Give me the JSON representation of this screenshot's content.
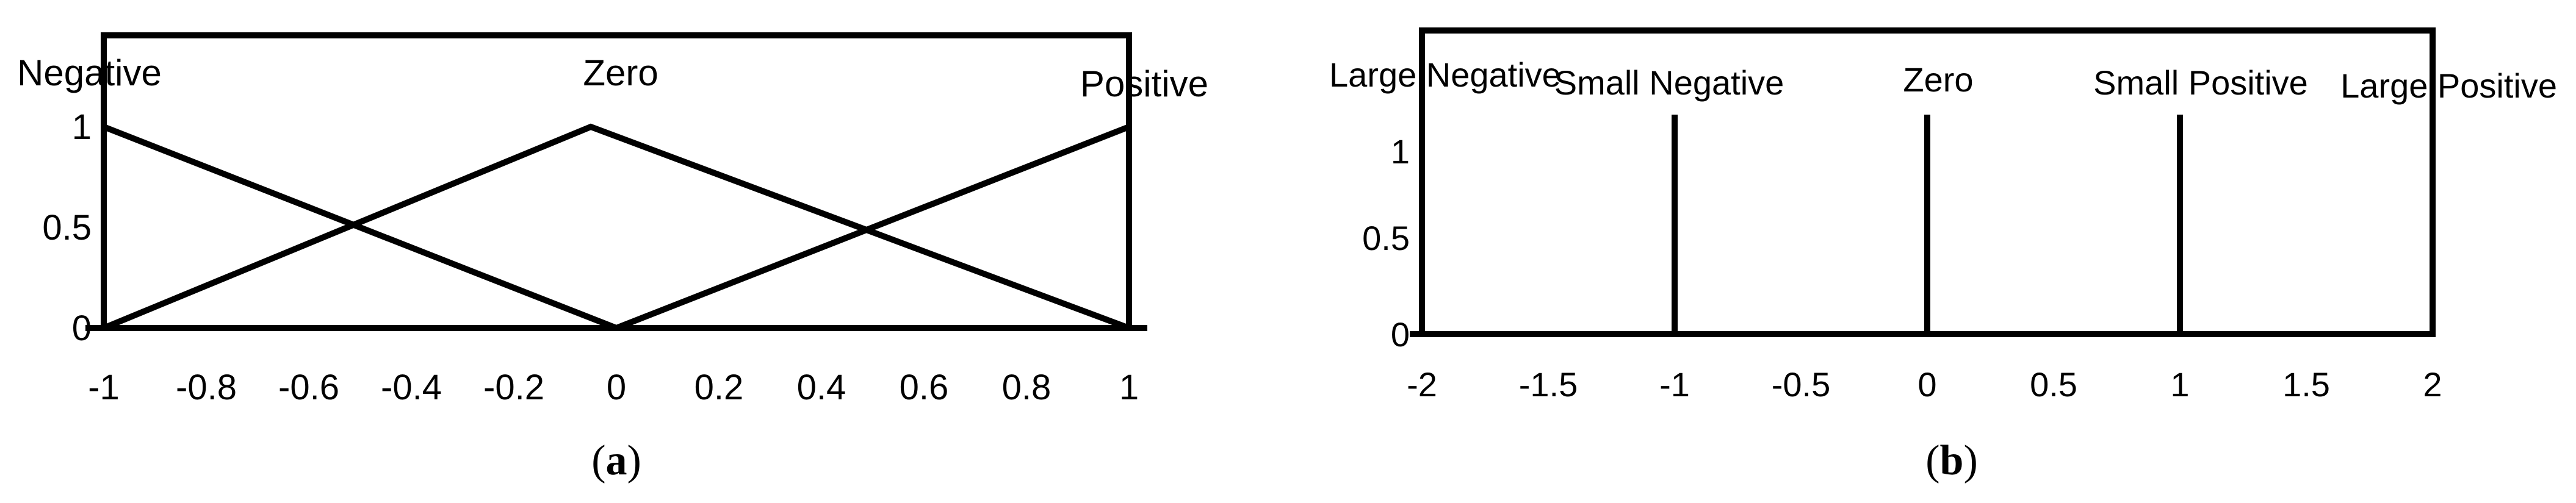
{
  "chart_data": [
    {
      "type": "line",
      "panel_label": "(a)",
      "panel_letter": "a",
      "x_ticks": [
        "-1",
        "-0.8",
        "-0.6",
        "-0.4",
        "-0.2",
        "0",
        "0.2",
        "0.4",
        "0.6",
        "0.8",
        "1"
      ],
      "y_ticks": [
        "0",
        "0.5",
        "1"
      ],
      "xlim": [
        -1,
        1
      ],
      "ylim": [
        0,
        1
      ],
      "series": [
        {
          "name": "Negative",
          "x": [
            -1,
            0
          ],
          "y": [
            1,
            0
          ]
        },
        {
          "name": "Zero",
          "x": [
            -1,
            -0.05,
            1
          ],
          "y": [
            0,
            1,
            0
          ]
        },
        {
          "name": "Positive",
          "x": [
            0,
            1
          ],
          "y": [
            0,
            1
          ]
        }
      ]
    },
    {
      "type": "line",
      "panel_label": "(b)",
      "panel_letter": "b",
      "x_ticks": [
        "-2",
        "-1.5",
        "-1",
        "-0.5",
        "0",
        "0.5",
        "1",
        "1.5",
        "2"
      ],
      "y_ticks": [
        "0",
        "0.5",
        "1"
      ],
      "xlim": [
        -2,
        2
      ],
      "ylim": [
        0,
        1
      ],
      "series": [
        {
          "name": "Large Negative",
          "x": [
            -2
          ],
          "y": [
            1
          ]
        },
        {
          "name": "Small Negative",
          "x": [
            -1,
            -1
          ],
          "y": [
            0,
            1
          ]
        },
        {
          "name": "Zero",
          "x": [
            0,
            0
          ],
          "y": [
            0,
            1
          ]
        },
        {
          "name": "Small Positive",
          "x": [
            1,
            1
          ],
          "y": [
            0,
            1
          ]
        },
        {
          "name": "Large Positive",
          "x": [
            2
          ],
          "y": [
            1
          ]
        }
      ]
    }
  ]
}
